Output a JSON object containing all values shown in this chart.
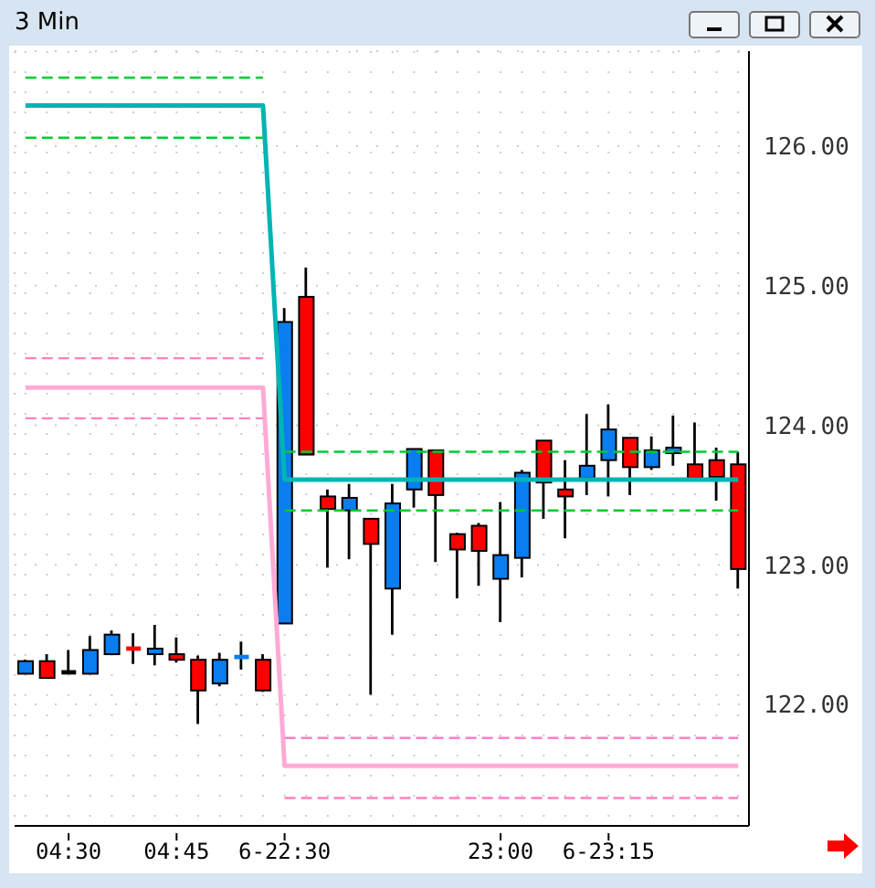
{
  "chart_data": {
    "type": "candlestick",
    "title": "3 Min",
    "categories": [
      null,
      null,
      "04:30",
      null,
      null,
      null,
      null,
      "04:45",
      null,
      null,
      null,
      null,
      "6-22:30",
      null,
      null,
      null,
      null,
      null,
      null,
      null,
      null,
      null,
      "23:00",
      null,
      null,
      null,
      null,
      "6-23:15",
      null,
      null,
      null,
      null,
      null,
      null
    ],
    "ohlc": [
      [
        122.22,
        122.32,
        122.22,
        122.31
      ],
      [
        122.31,
        122.36,
        122.19,
        122.19
      ],
      [
        122.23,
        122.39,
        122.23,
        122.23
      ],
      [
        122.22,
        122.49,
        122.22,
        122.39
      ],
      [
        122.36,
        122.53,
        122.36,
        122.5
      ],
      [
        122.4,
        122.51,
        122.29,
        122.4
      ],
      [
        122.36,
        122.57,
        122.28,
        122.4
      ],
      [
        122.36,
        122.48,
        122.3,
        122.32
      ],
      [
        122.32,
        122.35,
        121.86,
        122.1
      ],
      [
        122.15,
        122.37,
        122.13,
        122.32
      ],
      [
        122.34,
        122.45,
        122.25,
        122.34
      ],
      [
        122.32,
        122.36,
        122.09,
        122.1
      ],
      [
        122.58,
        124.84,
        122.58,
        124.74
      ],
      [
        124.92,
        125.13,
        123.79,
        123.79
      ],
      [
        123.49,
        123.54,
        122.98,
        123.4
      ],
      [
        123.39,
        123.58,
        123.04,
        123.48
      ],
      [
        123.33,
        123.33,
        122.07,
        123.15
      ],
      [
        122.83,
        123.58,
        122.5,
        123.44
      ],
      [
        123.54,
        123.83,
        123.41,
        123.83
      ],
      [
        123.82,
        123.82,
        123.02,
        123.5
      ],
      [
        123.22,
        123.23,
        122.76,
        123.11
      ],
      [
        123.28,
        123.3,
        122.85,
        123.1
      ],
      [
        122.9,
        123.45,
        122.59,
        123.07
      ],
      [
        123.05,
        123.68,
        122.91,
        123.66
      ],
      [
        123.89,
        123.89,
        123.33,
        123.59
      ],
      [
        123.54,
        123.75,
        123.19,
        123.49
      ],
      [
        123.62,
        124.08,
        123.5,
        123.71
      ],
      [
        123.75,
        124.15,
        123.49,
        123.97
      ],
      [
        123.91,
        123.91,
        123.5,
        123.7
      ],
      [
        123.7,
        123.92,
        123.68,
        123.82
      ],
      [
        123.8,
        124.07,
        123.71,
        123.84
      ],
      [
        123.72,
        124.02,
        123.62,
        123.62
      ],
      [
        123.75,
        123.84,
        123.46,
        123.63
      ],
      [
        123.72,
        123.81,
        122.83,
        122.97
      ]
    ],
    "colors": [
      "#0a7ef0",
      "#ff0000",
      "#000000",
      "#0a7ef0",
      "#0a7ef0",
      "#ff0000",
      "#0a7ef0",
      "#ff0000",
      "#ff0000",
      "#0a7ef0",
      "#0a7ef0",
      "#ff0000",
      "#0a7ef0",
      "#ff0000",
      "#ff0000",
      "#0a7ef0",
      "#ff0000",
      "#0a7ef0",
      "#0a7ef0",
      "#ff0000",
      "#ff0000",
      "#ff0000",
      "#0a7ef0",
      "#0a7ef0",
      "#ff0000",
      "#ff0000",
      "#0a7ef0",
      "#0a7ef0",
      "#ff0000",
      "#0a7ef0",
      "#0a7ef0",
      "#ff0000",
      "#ff0000",
      "#ff0000"
    ],
    "series": [
      {
        "type": "line",
        "color": "#00b4b4",
        "line_style": "solid",
        "values": [
          126.29,
          126.29,
          126.29,
          126.29,
          126.29,
          126.29,
          126.29,
          126.29,
          126.29,
          126.29,
          126.29,
          126.29,
          123.61,
          123.61,
          123.61,
          123.61,
          123.61,
          123.61,
          123.61,
          123.61,
          123.61,
          123.61,
          123.61,
          123.61,
          123.61,
          123.61,
          123.61,
          123.61,
          123.61,
          123.61,
          123.61,
          123.61,
          123.61,
          123.61
        ]
      },
      {
        "type": "line",
        "color": "#00cc33",
        "line_style": "dashed",
        "values": [
          126.49,
          126.49,
          126.49,
          126.49,
          126.49,
          126.49,
          126.49,
          126.49,
          126.49,
          126.49,
          126.49,
          126.49,
          null,
          null,
          null,
          null,
          null,
          null,
          null,
          null,
          null,
          null,
          null,
          null,
          null,
          null,
          null,
          null,
          null,
          null,
          null,
          null,
          null,
          null
        ]
      },
      {
        "type": "line",
        "color": "#00cc33",
        "line_style": "dashed",
        "values": [
          126.06,
          126.06,
          126.06,
          126.06,
          126.06,
          126.06,
          126.06,
          126.06,
          126.06,
          126.06,
          126.06,
          126.06,
          null,
          null,
          null,
          null,
          null,
          null,
          null,
          null,
          null,
          null,
          null,
          null,
          null,
          null,
          null,
          null,
          null,
          null,
          null,
          null,
          null,
          null
        ]
      },
      {
        "type": "line",
        "color": "#00cc33",
        "line_style": "dashed",
        "values": [
          null,
          null,
          null,
          null,
          null,
          null,
          null,
          null,
          null,
          null,
          null,
          null,
          123.81,
          123.81,
          123.81,
          123.81,
          123.81,
          123.81,
          123.81,
          123.81,
          123.81,
          123.81,
          123.81,
          123.81,
          123.81,
          123.81,
          123.81,
          123.81,
          123.81,
          123.81,
          123.81,
          123.81,
          123.81,
          123.81
        ]
      },
      {
        "type": "line",
        "color": "#00cc33",
        "line_style": "dashed",
        "values": [
          null,
          null,
          null,
          null,
          null,
          null,
          null,
          null,
          null,
          null,
          null,
          null,
          123.39,
          123.39,
          123.39,
          123.39,
          123.39,
          123.39,
          123.39,
          123.39,
          123.39,
          123.39,
          123.39,
          123.39,
          123.39,
          123.39,
          123.39,
          123.39,
          123.39,
          123.39,
          123.39,
          123.39,
          123.39,
          123.39
        ]
      },
      {
        "type": "line",
        "color": "#ffaad5",
        "line_style": "solid",
        "values": [
          124.27,
          124.27,
          124.27,
          124.27,
          124.27,
          124.27,
          124.27,
          124.27,
          124.27,
          124.27,
          124.27,
          124.27,
          121.56,
          121.56,
          121.56,
          121.56,
          121.56,
          121.56,
          121.56,
          121.56,
          121.56,
          121.56,
          121.56,
          121.56,
          121.56,
          121.56,
          121.56,
          121.56,
          121.56,
          121.56,
          121.56,
          121.56,
          121.56,
          121.56
        ]
      },
      {
        "type": "line",
        "color": "#ff80c0",
        "line_style": "dashed",
        "values": [
          124.48,
          124.48,
          124.48,
          124.48,
          124.48,
          124.48,
          124.48,
          124.48,
          124.48,
          124.48,
          124.48,
          124.48,
          null,
          null,
          null,
          null,
          null,
          null,
          null,
          null,
          null,
          null,
          null,
          null,
          null,
          null,
          null,
          null,
          null,
          null,
          null,
          null,
          null,
          null
        ]
      },
      {
        "type": "line",
        "color": "#ff80c0",
        "line_style": "dashed",
        "values": [
          124.05,
          124.05,
          124.05,
          124.05,
          124.05,
          124.05,
          124.05,
          124.05,
          124.05,
          124.05,
          124.05,
          124.05,
          null,
          null,
          null,
          null,
          null,
          null,
          null,
          null,
          null,
          null,
          null,
          null,
          null,
          null,
          null,
          null,
          null,
          null,
          null,
          null,
          null,
          null
        ]
      },
      {
        "type": "line",
        "color": "#ff80c0",
        "line_style": "dashed",
        "values": [
          null,
          null,
          null,
          null,
          null,
          null,
          null,
          null,
          null,
          null,
          null,
          null,
          121.76,
          121.76,
          121.76,
          121.76,
          121.76,
          121.76,
          121.76,
          121.76,
          121.76,
          121.76,
          121.76,
          121.76,
          121.76,
          121.76,
          121.76,
          121.76,
          121.76,
          121.76,
          121.76,
          121.76,
          121.76,
          121.76
        ]
      },
      {
        "type": "line",
        "color": "#ff80c0",
        "line_style": "dashed",
        "values": [
          null,
          null,
          null,
          null,
          null,
          null,
          null,
          null,
          null,
          null,
          null,
          null,
          121.33,
          121.33,
          121.33,
          121.33,
          121.33,
          121.33,
          121.33,
          121.33,
          121.33,
          121.33,
          121.33,
          121.33,
          121.33,
          121.33,
          121.33,
          121.33,
          121.33,
          121.33,
          121.33,
          121.33,
          121.33,
          121.33
        ]
      }
    ],
    "ylim": [
      121.13,
      126.68
    ],
    "yticks": [
      {
        "value": 122,
        "label": "122.00"
      },
      {
        "value": 123,
        "label": "123.00"
      },
      {
        "value": 124,
        "label": "124.00"
      },
      {
        "value": 125,
        "label": "125.00"
      },
      {
        "value": 126,
        "label": "126.00"
      }
    ],
    "grid": true
  }
}
